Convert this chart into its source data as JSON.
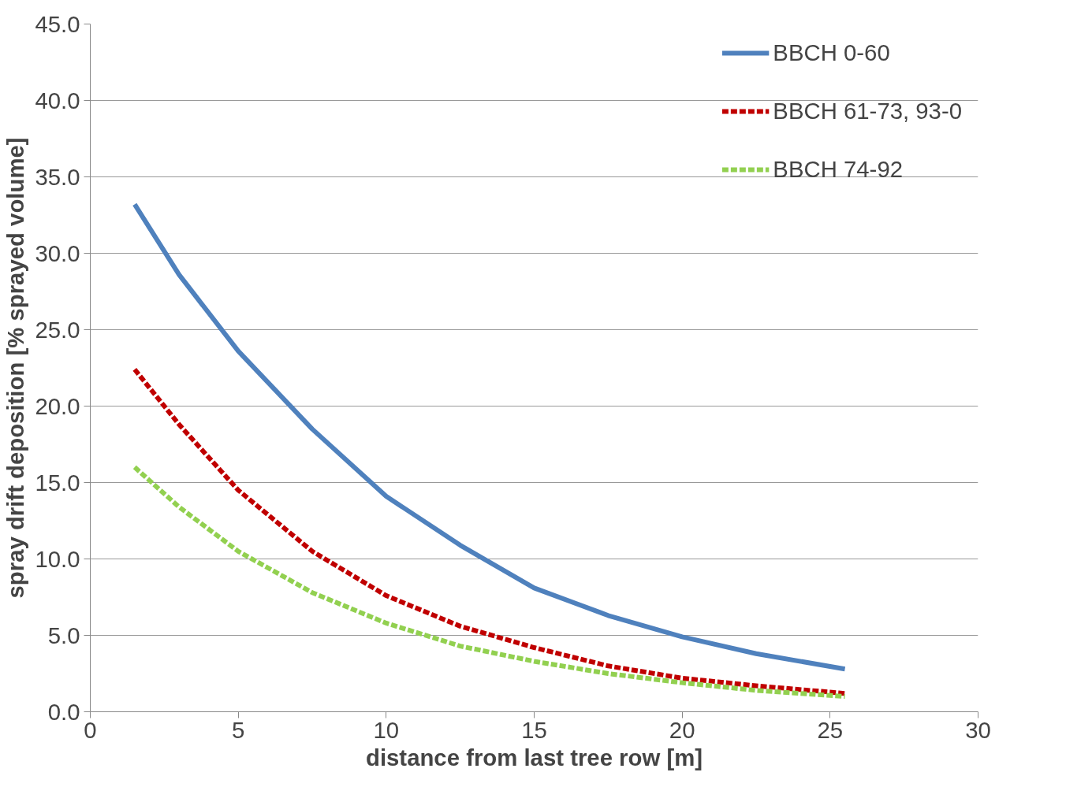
{
  "chart_data": {
    "type": "line",
    "xlabel": "distance from last tree row [m]",
    "ylabel": "spray drift deposition [% sprayed volume]",
    "series": [
      {
        "name": "BBCH 0-60",
        "color": "#4f81bd",
        "line_style": "solid",
        "x": [
          1.5,
          3,
          5,
          7.5,
          10,
          12.5,
          15,
          17.5,
          20,
          22.5,
          25.5
        ],
        "values": [
          33.2,
          28.6,
          23.6,
          18.5,
          14.1,
          10.9,
          8.1,
          6.3,
          4.9,
          3.8,
          2.8
        ]
      },
      {
        "name": "BBCH 61-73, 93-0",
        "color": "#c00000",
        "line_style": "dashed",
        "x": [
          1.5,
          3,
          5,
          7.5,
          10,
          12.5,
          15,
          17.5,
          20,
          22.5,
          25.5
        ],
        "values": [
          22.4,
          18.8,
          14.5,
          10.5,
          7.6,
          5.6,
          4.2,
          3.0,
          2.2,
          1.7,
          1.2
        ]
      },
      {
        "name": "BBCH 74-92",
        "color": "#92d050",
        "line_style": "dashed",
        "x": [
          1.5,
          3,
          5,
          7.5,
          10,
          12.5,
          15,
          17.5,
          20,
          22.5,
          25.5
        ],
        "values": [
          16.0,
          13.4,
          10.5,
          7.8,
          5.8,
          4.3,
          3.3,
          2.5,
          1.9,
          1.4,
          1.0
        ]
      }
    ],
    "xlim": [
      0,
      30
    ],
    "xticks": [
      0,
      5,
      10,
      15,
      20,
      25,
      30
    ],
    "ylim": [
      0,
      45
    ],
    "yticks": [
      {
        "value": 0,
        "label": "0.0"
      },
      {
        "value": 5,
        "label": "5.0"
      },
      {
        "value": 10,
        "label": "10.0"
      },
      {
        "value": 15,
        "label": "15.0"
      },
      {
        "value": 20,
        "label": "20.0"
      },
      {
        "value": 25,
        "label": "25.0"
      },
      {
        "value": 30,
        "label": "30.0"
      },
      {
        "value": 35,
        "label": "35.0"
      },
      {
        "value": 40,
        "label": "40.0"
      },
      {
        "value": 45,
        "label": "45.0"
      }
    ],
    "grid": "y",
    "legend": "top right",
    "marker": "none"
  }
}
